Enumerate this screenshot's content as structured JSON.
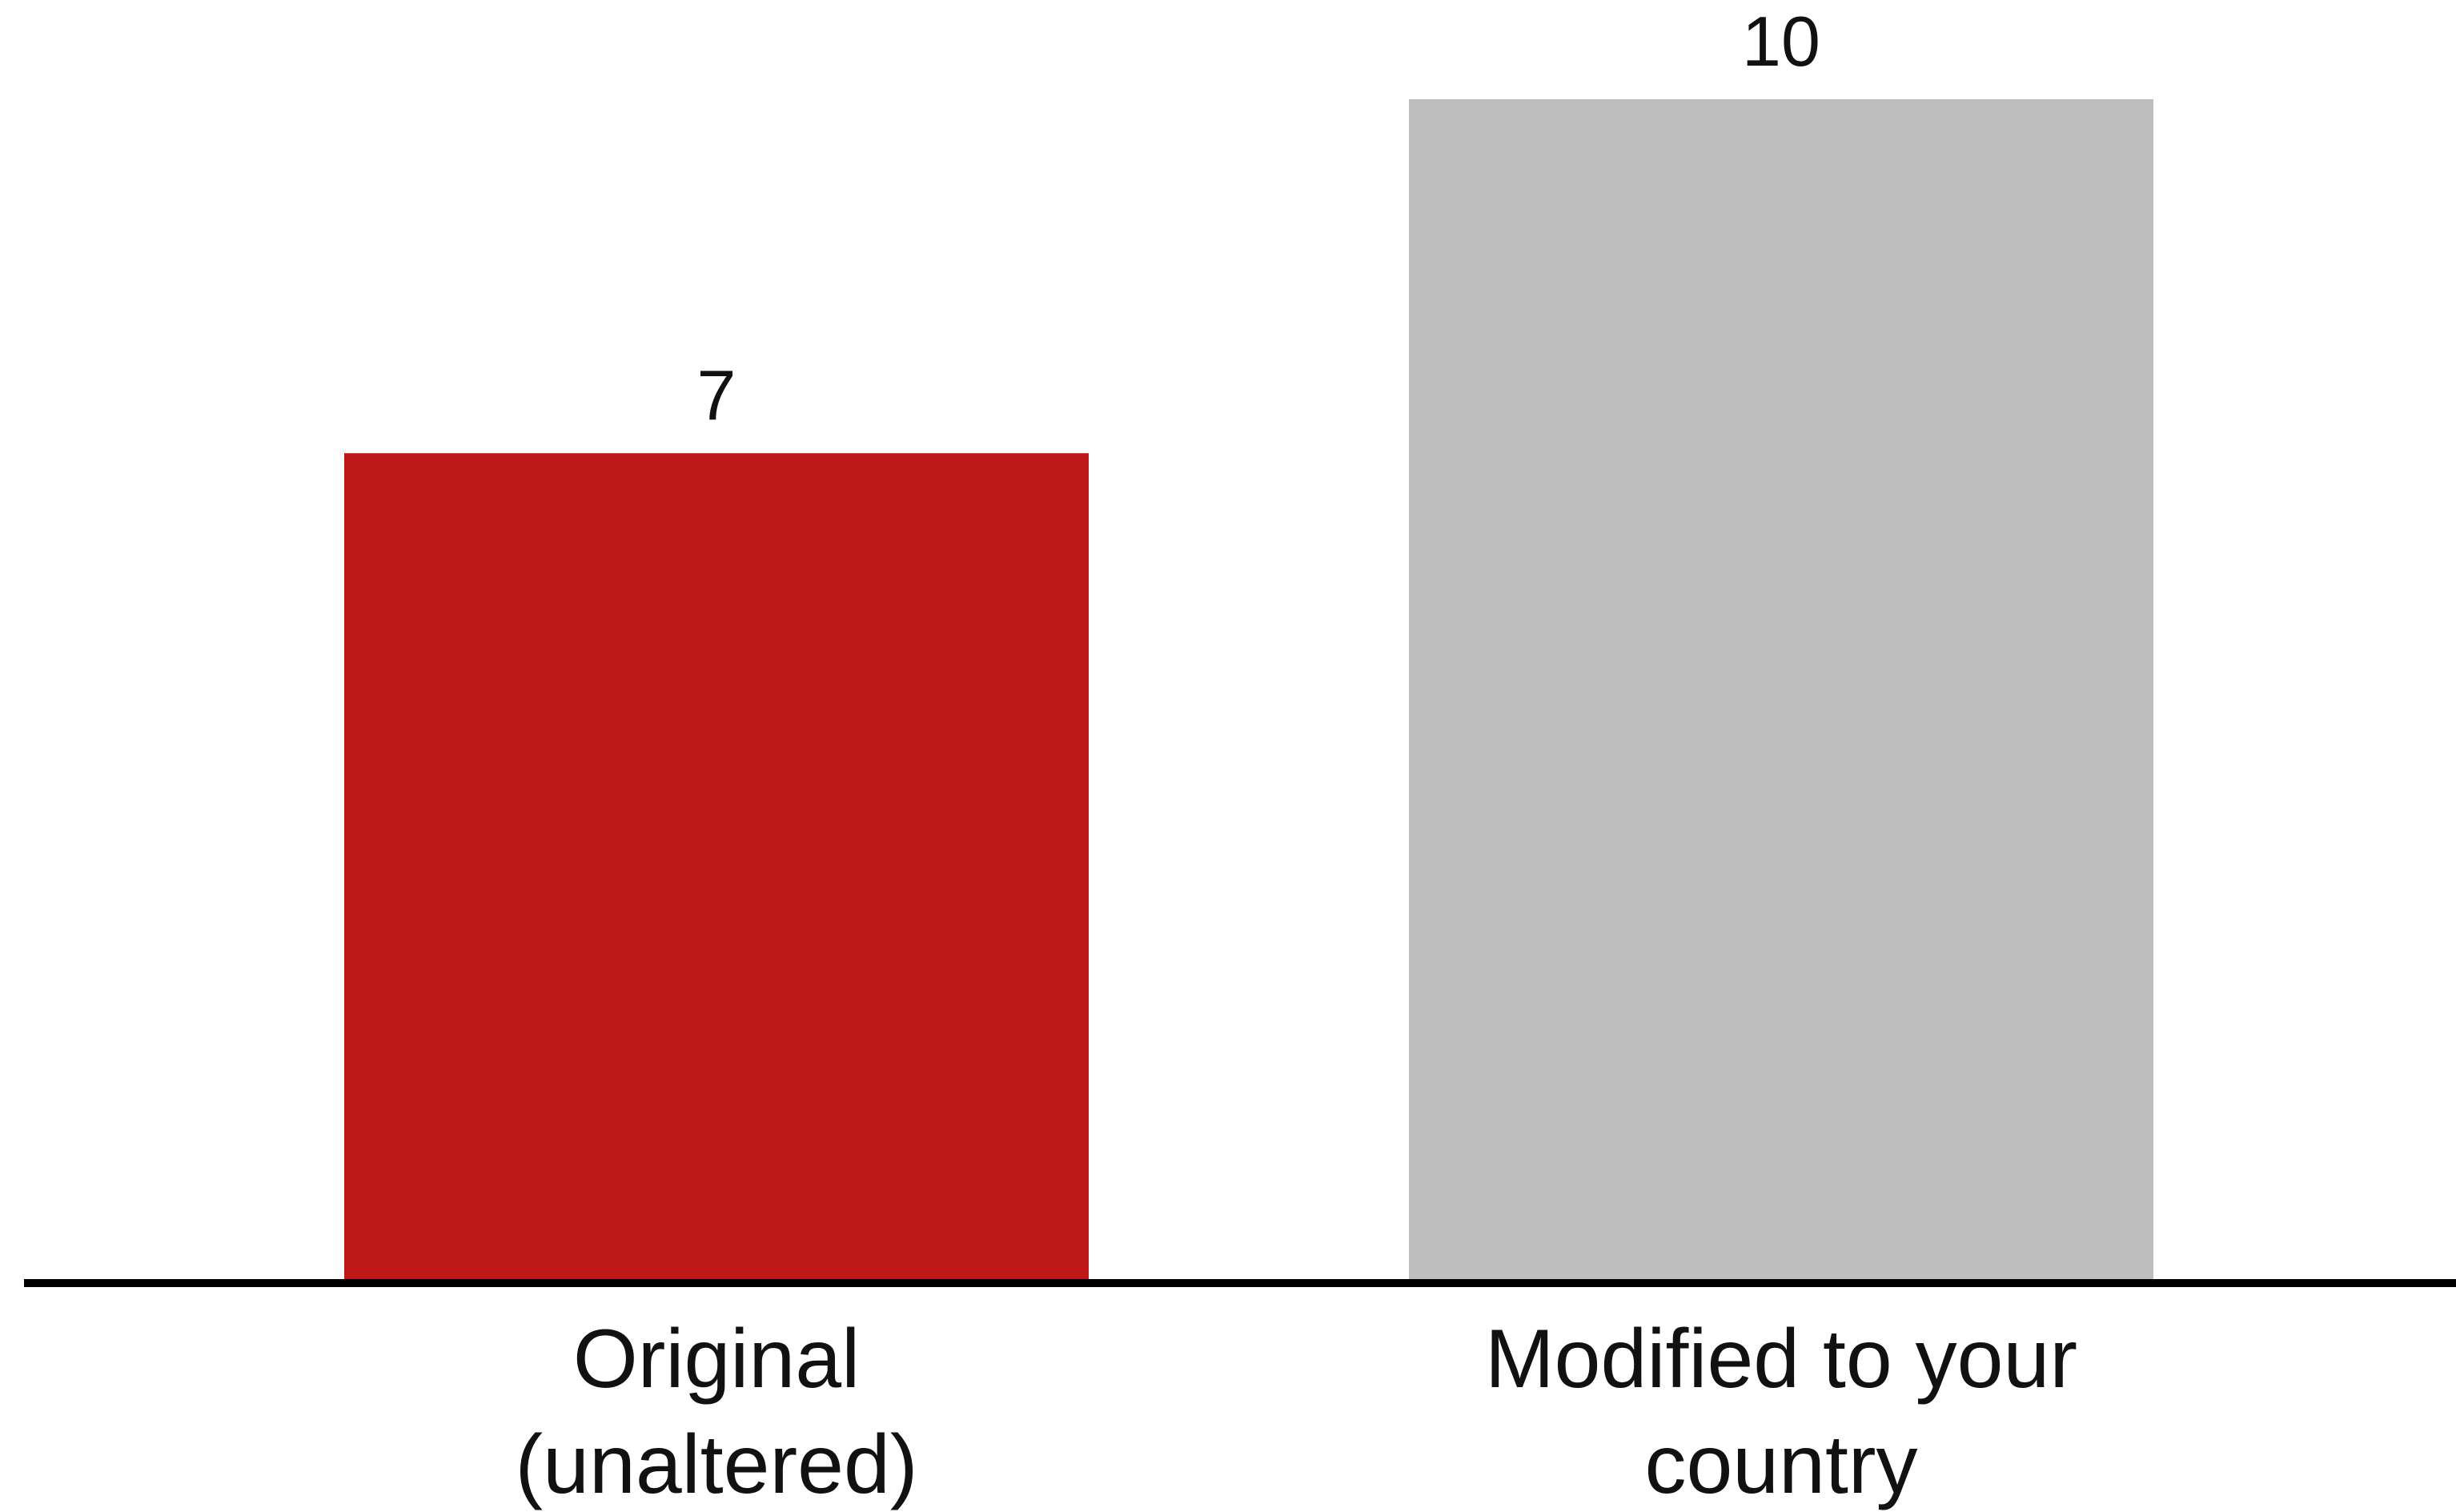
{
  "chart_data": {
    "type": "bar",
    "categories": [
      [
        "Original",
        "(unaltered)"
      ],
      [
        "Modified to your",
        "country"
      ]
    ],
    "values": [
      7,
      10
    ],
    "colors": [
      "#BE1918",
      "#BEBEBE"
    ],
    "axis_color": "#000000",
    "title": "",
    "xlabel": "",
    "ylabel": "",
    "ylim": [
      0,
      10
    ],
    "grid": false,
    "y_axis_visible": false,
    "data_labels": true
  }
}
